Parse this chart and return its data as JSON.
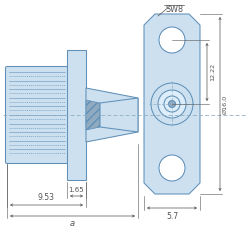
{
  "bg": "#ffffff",
  "fill": "#cce0f0",
  "fill_dark": "#b0cce0",
  "fill_inner": "#ddeefa",
  "edge": "#6090b8",
  "dim_c": "#555555",
  "dash_c": "#8aabbf",
  "hatch_c": "#90aac0",
  "labels": {
    "SW8": "SW8",
    "d1": "1.65",
    "d2": "9.53",
    "a": "a",
    "d3": "5.7",
    "d4": "12.22",
    "d5": "Ø16.0"
  }
}
